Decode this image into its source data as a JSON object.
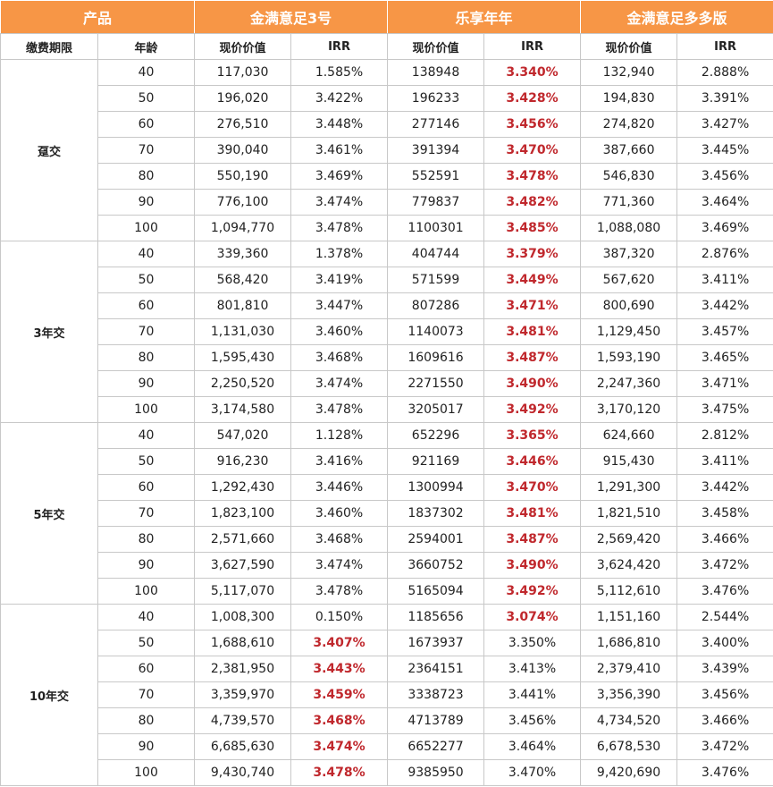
{
  "header": {
    "product": "产品",
    "products": [
      "金满意足3号",
      "乐享年年",
      "金满意足多多版"
    ]
  },
  "subheader": {
    "pay_period": "缴费期限",
    "age": "年龄",
    "pv": "现价价值",
    "irr": "IRR"
  },
  "highlight_color": "#c0282d",
  "header_color": "#f79646",
  "groups": [
    {
      "label": "趸交",
      "rows": [
        {
          "age": "40",
          "c1": "117,030",
          "i1": "1.585%",
          "h1": false,
          "c2": "138948",
          "i2": "3.340%",
          "h2": true,
          "c3": "132,940",
          "i3": "2.888%",
          "h3": false
        },
        {
          "age": "50",
          "c1": "196,020",
          "i1": "3.422%",
          "h1": false,
          "c2": "196233",
          "i2": "3.428%",
          "h2": true,
          "c3": "194,830",
          "i3": "3.391%",
          "h3": false
        },
        {
          "age": "60",
          "c1": "276,510",
          "i1": "3.448%",
          "h1": false,
          "c2": "277146",
          "i2": "3.456%",
          "h2": true,
          "c3": "274,820",
          "i3": "3.427%",
          "h3": false
        },
        {
          "age": "70",
          "c1": "390,040",
          "i1": "3.461%",
          "h1": false,
          "c2": "391394",
          "i2": "3.470%",
          "h2": true,
          "c3": "387,660",
          "i3": "3.445%",
          "h3": false
        },
        {
          "age": "80",
          "c1": "550,190",
          "i1": "3.469%",
          "h1": false,
          "c2": "552591",
          "i2": "3.478%",
          "h2": true,
          "c3": "546,830",
          "i3": "3.456%",
          "h3": false
        },
        {
          "age": "90",
          "c1": "776,100",
          "i1": "3.474%",
          "h1": false,
          "c2": "779837",
          "i2": "3.482%",
          "h2": true,
          "c3": "771,360",
          "i3": "3.464%",
          "h3": false
        },
        {
          "age": "100",
          "c1": "1,094,770",
          "i1": "3.478%",
          "h1": false,
          "c2": "1100301",
          "i2": "3.485%",
          "h2": true,
          "c3": "1,088,080",
          "i3": "3.469%",
          "h3": false
        }
      ]
    },
    {
      "label": "3年交",
      "rows": [
        {
          "age": "40",
          "c1": "339,360",
          "i1": "1.378%",
          "h1": false,
          "c2": "404744",
          "i2": "3.379%",
          "h2": true,
          "c3": "387,320",
          "i3": "2.876%",
          "h3": false
        },
        {
          "age": "50",
          "c1": "568,420",
          "i1": "3.419%",
          "h1": false,
          "c2": "571599",
          "i2": "3.449%",
          "h2": true,
          "c3": "567,620",
          "i3": "3.411%",
          "h3": false
        },
        {
          "age": "60",
          "c1": "801,810",
          "i1": "3.447%",
          "h1": false,
          "c2": "807286",
          "i2": "3.471%",
          "h2": true,
          "c3": "800,690",
          "i3": "3.442%",
          "h3": false
        },
        {
          "age": "70",
          "c1": "1,131,030",
          "i1": "3.460%",
          "h1": false,
          "c2": "1140073",
          "i2": "3.481%",
          "h2": true,
          "c3": "1,129,450",
          "i3": "3.457%",
          "h3": false
        },
        {
          "age": "80",
          "c1": "1,595,430",
          "i1": "3.468%",
          "h1": false,
          "c2": "1609616",
          "i2": "3.487%",
          "h2": true,
          "c3": "1,593,190",
          "i3": "3.465%",
          "h3": false
        },
        {
          "age": "90",
          "c1": "2,250,520",
          "i1": "3.474%",
          "h1": false,
          "c2": "2271550",
          "i2": "3.490%",
          "h2": true,
          "c3": "2,247,360",
          "i3": "3.471%",
          "h3": false
        },
        {
          "age": "100",
          "c1": "3,174,580",
          "i1": "3.478%",
          "h1": false,
          "c2": "3205017",
          "i2": "3.492%",
          "h2": true,
          "c3": "3,170,120",
          "i3": "3.475%",
          "h3": false
        }
      ]
    },
    {
      "label": "5年交",
      "rows": [
        {
          "age": "40",
          "c1": "547,020",
          "i1": "1.128%",
          "h1": false,
          "c2": "652296",
          "i2": "3.365%",
          "h2": true,
          "c3": "624,660",
          "i3": "2.812%",
          "h3": false
        },
        {
          "age": "50",
          "c1": "916,230",
          "i1": "3.416%",
          "h1": false,
          "c2": "921169",
          "i2": "3.446%",
          "h2": true,
          "c3": "915,430",
          "i3": "3.411%",
          "h3": false
        },
        {
          "age": "60",
          "c1": "1,292,430",
          "i1": "3.446%",
          "h1": false,
          "c2": "1300994",
          "i2": "3.470%",
          "h2": true,
          "c3": "1,291,300",
          "i3": "3.442%",
          "h3": false
        },
        {
          "age": "70",
          "c1": "1,823,100",
          "i1": "3.460%",
          "h1": false,
          "c2": "1837302",
          "i2": "3.481%",
          "h2": true,
          "c3": "1,821,510",
          "i3": "3.458%",
          "h3": false
        },
        {
          "age": "80",
          "c1": "2,571,660",
          "i1": "3.468%",
          "h1": false,
          "c2": "2594001",
          "i2": "3.487%",
          "h2": true,
          "c3": "2,569,420",
          "i3": "3.466%",
          "h3": false
        },
        {
          "age": "90",
          "c1": "3,627,590",
          "i1": "3.474%",
          "h1": false,
          "c2": "3660752",
          "i2": "3.490%",
          "h2": true,
          "c3": "3,624,420",
          "i3": "3.472%",
          "h3": false
        },
        {
          "age": "100",
          "c1": "5,117,070",
          "i1": "3.478%",
          "h1": false,
          "c2": "5165094",
          "i2": "3.492%",
          "h2": true,
          "c3": "5,112,610",
          "i3": "3.476%",
          "h3": false
        }
      ]
    },
    {
      "label": "10年交",
      "rows": [
        {
          "age": "40",
          "c1": "1,008,300",
          "i1": "0.150%",
          "h1": false,
          "c2": "1185656",
          "i2": "3.074%",
          "h2": true,
          "c3": "1,151,160",
          "i3": "2.544%",
          "h3": false
        },
        {
          "age": "50",
          "c1": "1,688,610",
          "i1": "3.407%",
          "h1": true,
          "c2": "1673937",
          "i2": "3.350%",
          "h2": false,
          "c3": "1,686,810",
          "i3": "3.400%",
          "h3": false
        },
        {
          "age": "60",
          "c1": "2,381,950",
          "i1": "3.443%",
          "h1": true,
          "c2": "2364151",
          "i2": "3.413%",
          "h2": false,
          "c3": "2,379,410",
          "i3": "3.439%",
          "h3": false
        },
        {
          "age": "70",
          "c1": "3,359,970",
          "i1": "3.459%",
          "h1": true,
          "c2": "3338723",
          "i2": "3.441%",
          "h2": false,
          "c3": "3,356,390",
          "i3": "3.456%",
          "h3": false
        },
        {
          "age": "80",
          "c1": "4,739,570",
          "i1": "3.468%",
          "h1": true,
          "c2": "4713789",
          "i2": "3.456%",
          "h2": false,
          "c3": "4,734,520",
          "i3": "3.466%",
          "h3": false
        },
        {
          "age": "90",
          "c1": "6,685,630",
          "i1": "3.474%",
          "h1": true,
          "c2": "6652277",
          "i2": "3.464%",
          "h2": false,
          "c3": "6,678,530",
          "i3": "3.472%",
          "h3": false
        },
        {
          "age": "100",
          "c1": "9,430,740",
          "i1": "3.478%",
          "h1": true,
          "c2": "9385950",
          "i2": "3.470%",
          "h2": false,
          "c3": "9,420,690",
          "i3": "3.476%",
          "h3": false
        }
      ]
    }
  ]
}
